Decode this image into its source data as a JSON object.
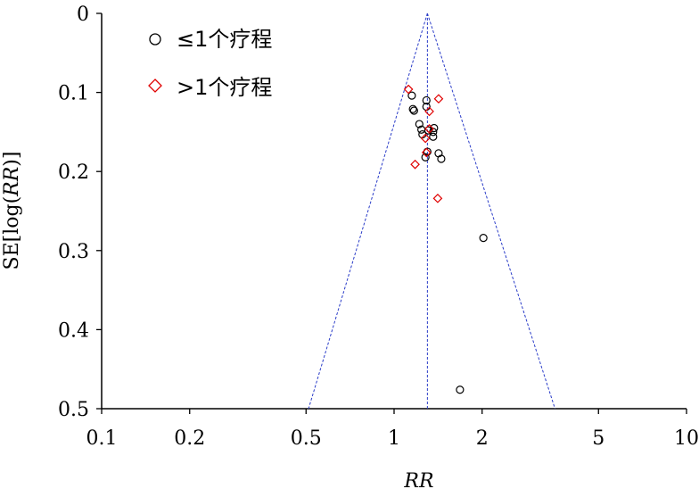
{
  "chart_data": {
    "type": "scatter",
    "title": "",
    "xlabel": "RR",
    "ylabel_prefix": "SE[log(",
    "ylabel_italic": "RR",
    "ylabel_suffix": ")]",
    "x_scale": "log",
    "xlim": [
      0.1,
      10
    ],
    "ylim": [
      0,
      0.5
    ],
    "y_inverted": true,
    "x_ticks": [
      "0.1",
      "0.2",
      "0.5",
      "1",
      "2",
      "5",
      "10"
    ],
    "y_ticks": [
      "0",
      "0.1",
      "0.2",
      "0.3",
      "0.4",
      "0.5"
    ],
    "pooled_rr": 1.3,
    "funnel_bottom_left_rr": 0.51,
    "funnel_bottom_right_rr": 3.55,
    "grid": false,
    "legend_position": "top-left",
    "series": [
      {
        "name": "≤1个疗程",
        "marker": "circle",
        "color": "#000000",
        "points": [
          {
            "x": 1.29,
            "y": 0.11
          },
          {
            "x": 1.15,
            "y": 0.104
          },
          {
            "x": 1.16,
            "y": 0.121
          },
          {
            "x": 1.29,
            "y": 0.118
          },
          {
            "x": 1.17,
            "y": 0.123
          },
          {
            "x": 1.22,
            "y": 0.14
          },
          {
            "x": 1.24,
            "y": 0.147
          },
          {
            "x": 1.25,
            "y": 0.153
          },
          {
            "x": 1.31,
            "y": 0.148
          },
          {
            "x": 1.36,
            "y": 0.15
          },
          {
            "x": 1.36,
            "y": 0.156
          },
          {
            "x": 1.37,
            "y": 0.145
          },
          {
            "x": 1.3,
            "y": 0.175
          },
          {
            "x": 1.42,
            "y": 0.177
          },
          {
            "x": 1.45,
            "y": 0.184
          },
          {
            "x": 1.28,
            "y": 0.182
          },
          {
            "x": 2.02,
            "y": 0.284
          },
          {
            "x": 1.68,
            "y": 0.476
          }
        ]
      },
      {
        "name": ">1个疗程",
        "marker": "diamond",
        "color": "#e00000",
        "points": [
          {
            "x": 1.12,
            "y": 0.096
          },
          {
            "x": 1.42,
            "y": 0.108
          },
          {
            "x": 1.32,
            "y": 0.124
          },
          {
            "x": 1.32,
            "y": 0.146
          },
          {
            "x": 1.28,
            "y": 0.158
          },
          {
            "x": 1.29,
            "y": 0.176
          },
          {
            "x": 1.18,
            "y": 0.191
          },
          {
            "x": 1.41,
            "y": 0.234
          }
        ]
      }
    ]
  }
}
